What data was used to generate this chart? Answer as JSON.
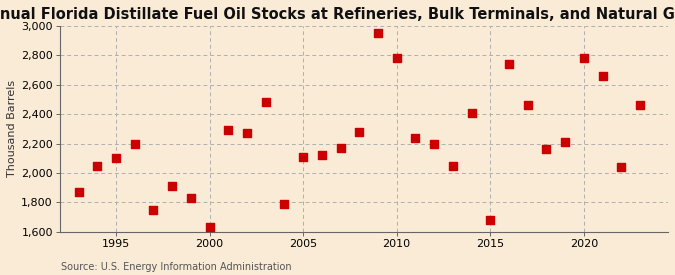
{
  "title": "Annual Florida Distillate Fuel Oil Stocks at Refineries, Bulk Terminals, and Natural Gas Plants",
  "ylabel": "Thousand Barrels",
  "source": "Source: U.S. Energy Information Administration",
  "background_color": "#faebd7",
  "plot_bg_color": "#faebd7",
  "marker_color": "#cc0000",
  "marker_size": 28,
  "years": [
    1993,
    1994,
    1995,
    1996,
    1997,
    1998,
    1999,
    2000,
    2001,
    2002,
    2003,
    2004,
    2005,
    2006,
    2007,
    2008,
    2009,
    2010,
    2011,
    2012,
    2013,
    2014,
    2015,
    2016,
    2017,
    2018,
    2019,
    2020,
    2021,
    2022,
    2023
  ],
  "values": [
    1870,
    2050,
    2100,
    2200,
    1750,
    1910,
    1830,
    1630,
    2290,
    2270,
    2480,
    1790,
    2110,
    2120,
    2170,
    2280,
    2950,
    2780,
    2240,
    2200,
    2050,
    2410,
    1680,
    2740,
    2460,
    2160,
    2210,
    2780,
    2660,
    2040,
    2460
  ],
  "ylim": [
    1600,
    3000
  ],
  "yticks": [
    1600,
    1800,
    2000,
    2200,
    2400,
    2600,
    2800,
    3000
  ],
  "xlim": [
    1992.0,
    2024.5
  ],
  "xticks": [
    1995,
    2000,
    2005,
    2010,
    2015,
    2020
  ],
  "grid_color": "#b0b0b0",
  "title_fontsize": 10.5,
  "axis_fontsize": 8,
  "tick_fontsize": 8,
  "source_fontsize": 7
}
